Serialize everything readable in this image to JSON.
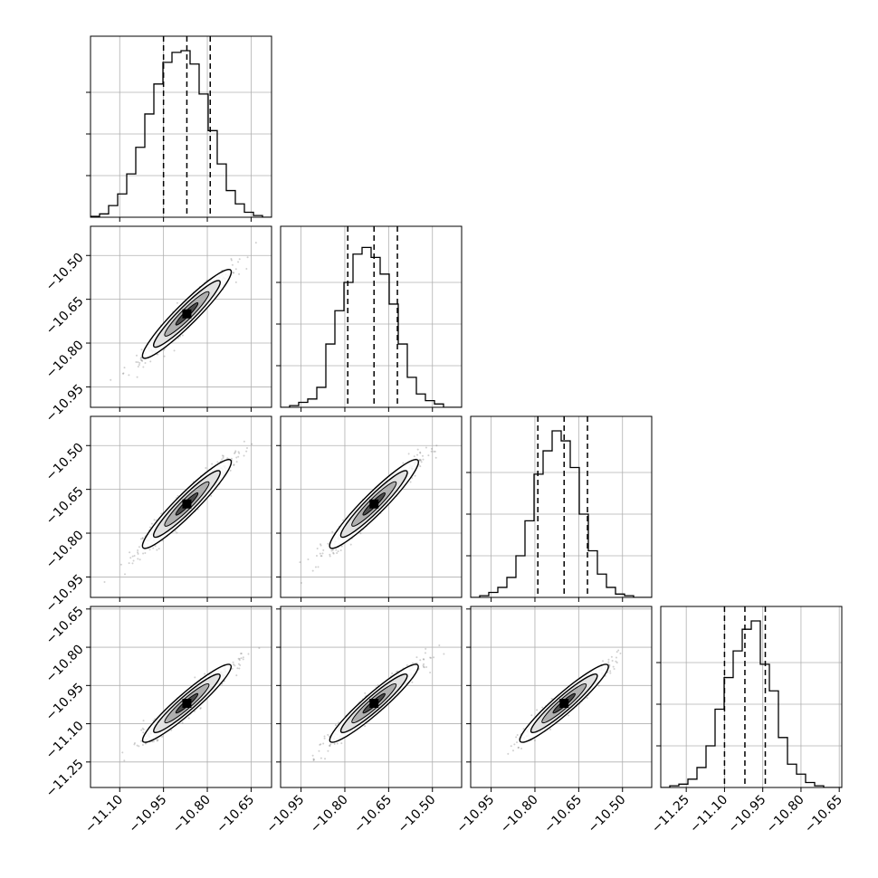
{
  "chart_data": {
    "type": "corner",
    "parameters": 4,
    "panel_tick_labels": {
      "x": [
        [
          "−11.10",
          "−10.95",
          "−10.80",
          "−10.65"
        ],
        [
          "−10.95",
          "−10.80",
          "−10.65",
          "−10.50"
        ],
        [
          "−10.95",
          "−10.80",
          "−10.65",
          "−10.50"
        ],
        [
          "−11.25",
          "−11.10",
          "−10.95",
          "−10.80",
          "−10.65"
        ]
      ],
      "y": [
        [],
        [
          "−10.50",
          "−10.65",
          "−10.80",
          "−10.95"
        ],
        [
          "−10.50",
          "−10.65",
          "−10.80",
          "−10.95"
        ],
        [
          "−10.65",
          "−10.80",
          "−10.95",
          "−11.10",
          "−11.25"
        ]
      ]
    },
    "axis_ranges": [
      [
        -11.2,
        -10.58
      ],
      [
        -11.02,
        -10.4
      ],
      [
        -11.02,
        -10.4
      ],
      [
        -11.35,
        -10.64
      ]
    ],
    "x_ticks": [
      [
        -11.1,
        -10.95,
        -10.8,
        -10.65
      ],
      [
        -10.95,
        -10.8,
        -10.65,
        -10.5
      ],
      [
        -10.95,
        -10.8,
        -10.65,
        -10.5
      ],
      [
        -11.25,
        -11.1,
        -10.95,
        -10.8,
        -10.65
      ]
    ],
    "means": [
      -10.87,
      -10.7,
      -10.7,
      -11.02
    ],
    "quantile_lines": [
      [
        -10.95,
        -10.87,
        -10.79
      ],
      [
        -10.79,
        -10.7,
        -10.62
      ],
      [
        -10.79,
        -10.7,
        -10.62
      ],
      [
        -11.1,
        -11.02,
        -10.94
      ]
    ],
    "histograms": [
      [
        0.005,
        0.02,
        0.07,
        0.14,
        0.26,
        0.42,
        0.62,
        0.8,
        0.93,
        0.99,
        1.0,
        0.92,
        0.74,
        0.52,
        0.32,
        0.16,
        0.08,
        0.03,
        0.01,
        0.0
      ],
      [
        0.0,
        0.01,
        0.03,
        0.05,
        0.12,
        0.38,
        0.58,
        0.75,
        0.92,
        0.96,
        0.9,
        0.8,
        0.62,
        0.38,
        0.18,
        0.08,
        0.04,
        0.02,
        0.0,
        0.0
      ],
      [
        0.0,
        0.01,
        0.03,
        0.06,
        0.12,
        0.25,
        0.46,
        0.74,
        0.88,
        1.0,
        0.94,
        0.78,
        0.5,
        0.28,
        0.14,
        0.06,
        0.02,
        0.01,
        0.0,
        0.0
      ],
      [
        0.0,
        0.01,
        0.02,
        0.05,
        0.12,
        0.25,
        0.47,
        0.66,
        0.82,
        0.95,
        1.0,
        0.74,
        0.58,
        0.3,
        0.14,
        0.08,
        0.03,
        0.01,
        0.0,
        0.0
      ]
    ],
    "grid": true
  }
}
